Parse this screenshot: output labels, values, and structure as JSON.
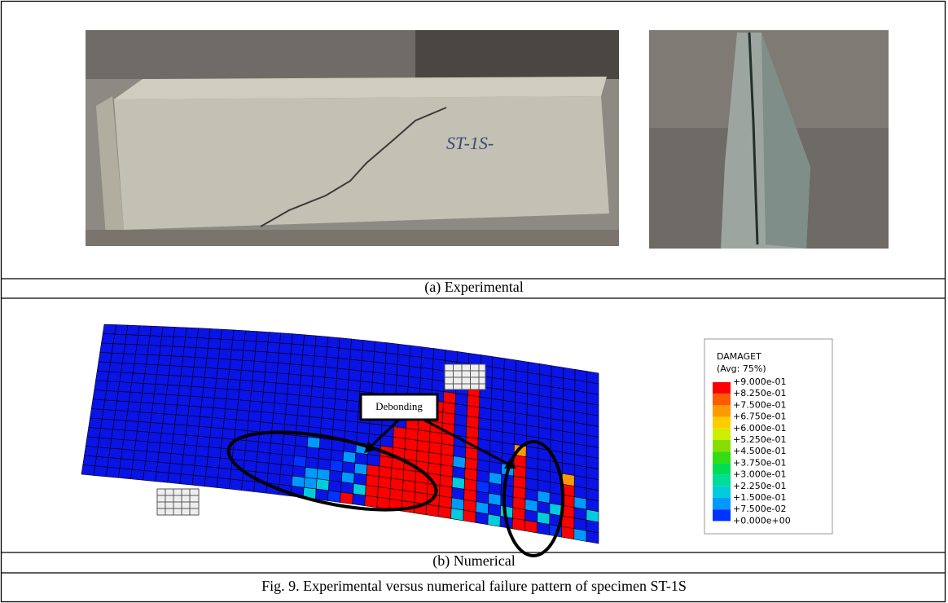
{
  "figure": {
    "panel_a": {
      "caption": "(a) Experimental"
    },
    "panel_b": {
      "caption": "(b) Numerical",
      "annotation": "Debonding",
      "legend": {
        "title": "DAMAGET",
        "subtitle": "(Avg: 75%)",
        "labels": [
          "+9.000e-01",
          "+8.250e-01",
          "+7.500e-01",
          "+6.750e-01",
          "+6.000e-01",
          "+5.250e-01",
          "+4.500e-01",
          "+3.750e-01",
          "+3.000e-01",
          "+2.250e-01",
          "+1.500e-01",
          "+7.500e-02",
          "+0.000e+00"
        ],
        "colors": [
          "#ff0000",
          "#ff5a00",
          "#ff9900",
          "#ffcc00",
          "#ccee00",
          "#88dd00",
          "#33dd11",
          "#00dd55",
          "#00dd99",
          "#00ccdd",
          "#0099ff",
          "#0033ff"
        ]
      }
    },
    "caption": "Fig. 9. Experimental versus numerical failure pattern of specimen ST-1S"
  }
}
